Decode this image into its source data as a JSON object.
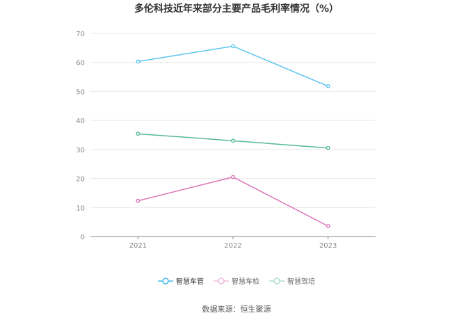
{
  "chart_data": {
    "type": "line",
    "title": "多伦科技近年来部分主要产品毛利率情况（%）",
    "categories": [
      "2021",
      "2022",
      "2023"
    ],
    "yticks": [
      "0",
      "10",
      "20",
      "30",
      "40",
      "50",
      "60",
      "70"
    ],
    "ylim": [
      0,
      70
    ],
    "grid": true,
    "legend_position": "bottom",
    "series": [
      {
        "name": "智慧车管",
        "color": "#5bc4ef",
        "values": [
          60.3,
          65.6,
          51.8
        ]
      },
      {
        "name": "智慧车检",
        "color": "#dd72b8",
        "values": [
          12.3,
          20.5,
          3.6
        ]
      },
      {
        "name": "智慧驾培",
        "color": "#55b89c",
        "values": [
          35.4,
          33.0,
          30.5
        ]
      }
    ]
  },
  "source": "数据来源：恒生聚源"
}
